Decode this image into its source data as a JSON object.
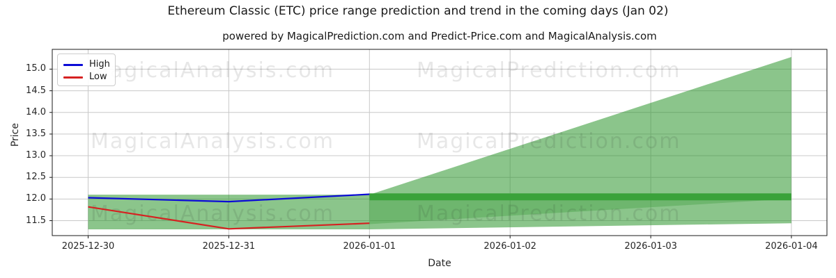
{
  "header": {
    "title": "Ethereum Classic (ETC) price range prediction and trend in the coming days (Jan 02)",
    "subtitle": "powered by MagicalPrediction.com and Predict-Price.com and MagicalAnalysis.com"
  },
  "axes": {
    "y_label": "Price",
    "x_label": "Date",
    "y_tick_labels": [
      "11.5",
      "12.0",
      "12.5",
      "13.0",
      "13.5",
      "14.0",
      "14.5",
      "15.0"
    ],
    "x_tick_labels": [
      "2025-12-30",
      "2025-12-31",
      "2026-01-01",
      "2026-01-02",
      "2026-01-03",
      "2026-01-04"
    ]
  },
  "legend": {
    "items": [
      {
        "label": "High",
        "color": "#0b0bd6"
      },
      {
        "label": "Low",
        "color": "#d62121"
      }
    ]
  },
  "watermarks": {
    "left_text": "MagicalAnalysis.com",
    "right_text": "MagicalPrediction.com"
  },
  "colors": {
    "high_line": "#0b0bd6",
    "low_line": "#d62121",
    "band_light": "rgba(44,150,44,0.55)",
    "band_medium": "rgba(44,150,44,0.30)",
    "band_dark": "#3aa23a",
    "grid": "#c8c8c8",
    "spine": "#1a1a1a",
    "text": "#262626"
  },
  "chart_data": {
    "type": "line",
    "title": "Ethereum Classic (ETC) price range prediction and trend in the coming days (Jan 02)",
    "xlabel": "Date",
    "ylabel": "Price",
    "x": [
      "2025-12-30",
      "2025-12-31",
      "2026-01-01",
      "2026-01-02",
      "2026-01-03",
      "2026-01-04"
    ],
    "y_ticks": [
      11.5,
      12.0,
      12.5,
      13.0,
      13.5,
      14.0,
      14.5,
      15.0
    ],
    "ylim": [
      11.15,
      15.46
    ],
    "grid": true,
    "legend_position": "upper left",
    "series": [
      {
        "name": "High",
        "style": "high_line",
        "points": [
          [
            0,
            12.03
          ],
          [
            1,
            11.94
          ],
          [
            2,
            12.11
          ]
        ]
      },
      {
        "name": "Low",
        "style": "low_line",
        "points": [
          [
            0,
            11.82
          ],
          [
            1,
            11.31
          ],
          [
            2,
            11.44
          ]
        ]
      }
    ],
    "bands": [
      {
        "name": "history-range-band",
        "style": "band_light",
        "points": [
          [
            0,
            12.1
          ],
          [
            2,
            12.1
          ],
          [
            2,
            11.3
          ],
          [
            0,
            11.3
          ]
        ]
      },
      {
        "name": "forecast-fan",
        "style": "band_light",
        "points": [
          [
            2,
            12.1
          ],
          [
            5,
            15.28
          ],
          [
            5,
            11.44
          ],
          [
            2,
            11.3
          ]
        ]
      },
      {
        "name": "forecast-low-wedge",
        "style": "band_medium",
        "points": [
          [
            2,
            11.97
          ],
          [
            2,
            11.42
          ],
          [
            4.97,
            12.0
          ]
        ]
      },
      {
        "name": "forecast-trend-band",
        "style": "band_dark",
        "points": [
          [
            2,
            12.13
          ],
          [
            5,
            12.13
          ],
          [
            5,
            11.97
          ],
          [
            2,
            11.97
          ]
        ]
      }
    ]
  }
}
